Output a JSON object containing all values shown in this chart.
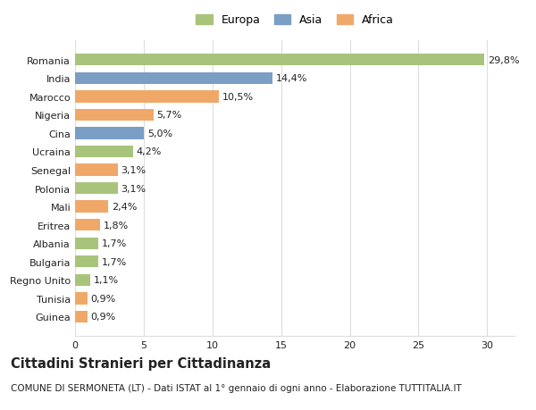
{
  "categories": [
    "Guinea",
    "Tunisia",
    "Regno Unito",
    "Bulgaria",
    "Albania",
    "Eritrea",
    "Mali",
    "Polonia",
    "Senegal",
    "Ucraina",
    "Cina",
    "Nigeria",
    "Marocco",
    "India",
    "Romania"
  ],
  "values": [
    0.9,
    0.9,
    1.1,
    1.7,
    1.7,
    1.8,
    2.4,
    3.1,
    3.1,
    4.2,
    5.0,
    5.7,
    10.5,
    14.4,
    29.8
  ],
  "labels": [
    "0,9%",
    "0,9%",
    "1,1%",
    "1,7%",
    "1,7%",
    "1,8%",
    "2,4%",
    "3,1%",
    "3,1%",
    "4,2%",
    "5,0%",
    "5,7%",
    "10,5%",
    "14,4%",
    "29,8%"
  ],
  "colors": [
    "#f0a868",
    "#f0a868",
    "#a8c47a",
    "#a8c47a",
    "#a8c47a",
    "#f0a868",
    "#f0a868",
    "#a8c47a",
    "#f0a868",
    "#a8c47a",
    "#7a9ec4",
    "#f0a868",
    "#f0a868",
    "#7a9ec4",
    "#a8c47a"
  ],
  "legend_labels": [
    "Europa",
    "Asia",
    "Africa"
  ],
  "legend_colors": [
    "#a8c47a",
    "#7a9ec4",
    "#f0a868"
  ],
  "title": "Cittadini Stranieri per Cittadinanza",
  "subtitle": "COMUNE DI SERMONETA (LT) - Dati ISTAT al 1° gennaio di ogni anno - Elaborazione TUTTITALIA.IT",
  "xlim": [
    0,
    32
  ],
  "xticks": [
    0,
    5,
    10,
    15,
    20,
    25,
    30
  ],
  "bar_height": 0.65,
  "background_color": "#ffffff",
  "grid_color": "#dddddd",
  "text_color": "#222222",
  "label_fontsize": 8.0,
  "tick_fontsize": 8.0,
  "title_fontsize": 10.5,
  "subtitle_fontsize": 7.5,
  "legend_fontsize": 9.0
}
